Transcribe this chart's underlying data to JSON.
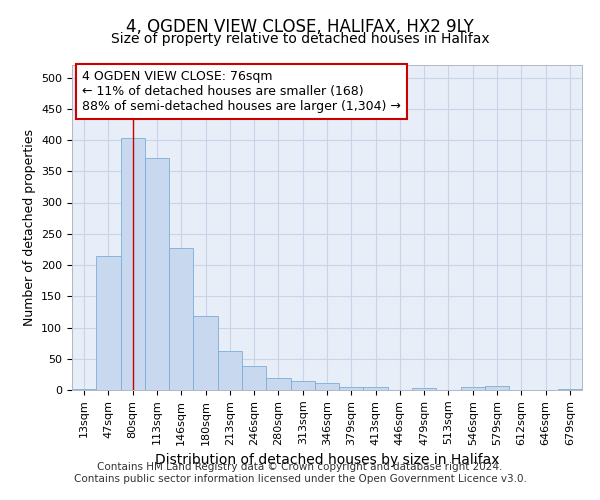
{
  "title_line1": "4, OGDEN VIEW CLOSE, HALIFAX, HX2 9LY",
  "title_line2": "Size of property relative to detached houses in Halifax",
  "xlabel": "Distribution of detached houses by size in Halifax",
  "ylabel": "Number of detached properties",
  "bar_labels": [
    "13sqm",
    "47sqm",
    "80sqm",
    "113sqm",
    "146sqm",
    "180sqm",
    "213sqm",
    "246sqm",
    "280sqm",
    "313sqm",
    "346sqm",
    "379sqm",
    "413sqm",
    "446sqm",
    "479sqm",
    "513sqm",
    "546sqm",
    "579sqm",
    "612sqm",
    "646sqm",
    "679sqm"
  ],
  "bar_values": [
    2,
    215,
    403,
    372,
    227,
    118,
    63,
    38,
    20,
    14,
    11,
    5,
    5,
    0,
    3,
    0,
    5,
    6,
    0,
    0,
    1
  ],
  "bar_color": "#c8d9ef",
  "bar_edgecolor": "#7aaed6",
  "property_line_x": 2.0,
  "annotation_text": "4 OGDEN VIEW CLOSE: 76sqm\n← 11% of detached houses are smaller (168)\n88% of semi-detached houses are larger (1,304) →",
  "annotation_box_color": "#ffffff",
  "annotation_box_edgecolor": "#cc0000",
  "vline_color": "#cc0000",
  "ylim": [
    0,
    520
  ],
  "yticks": [
    0,
    50,
    100,
    150,
    200,
    250,
    300,
    350,
    400,
    450,
    500
  ],
  "grid_color": "#c8d4e8",
  "background_color": "#e8eef8",
  "footer_line1": "Contains HM Land Registry data © Crown copyright and database right 2024.",
  "footer_line2": "Contains public sector information licensed under the Open Government Licence v3.0.",
  "title_fontsize": 12,
  "subtitle_fontsize": 10,
  "xlabel_fontsize": 10,
  "ylabel_fontsize": 9,
  "tick_fontsize": 8,
  "annotation_fontsize": 9,
  "footer_fontsize": 7.5
}
